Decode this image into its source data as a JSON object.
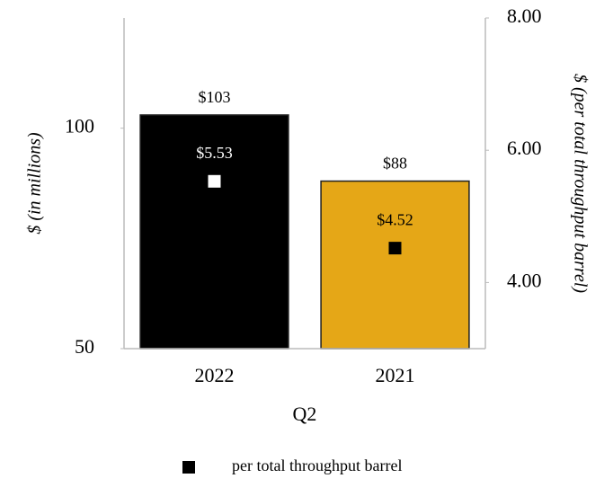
{
  "chart_data": {
    "type": "bar",
    "categories": [
      "2022",
      "2021"
    ],
    "x_label": "Q2",
    "y_label": "$ (in millions)",
    "y2_label": "$ (per total throughput barrel)",
    "ylim": [
      50,
      125
    ],
    "yticks": [
      50,
      100
    ],
    "y2lim": [
      3,
      8
    ],
    "y2ticks": [
      {
        "value": 4,
        "label": "4.00"
      },
      {
        "value": 6,
        "label": "6.00"
      },
      {
        "value": 8,
        "label": "8.00"
      }
    ],
    "series": [
      {
        "type": "bar",
        "values": [
          103,
          88
        ],
        "value_labels": [
          "$103",
          "$88"
        ],
        "colors": [
          "#000000",
          "#e5a717"
        ]
      },
      {
        "type": "scatter",
        "name": "per total throughput barrel",
        "axis": "y2",
        "color": "#000000",
        "values": [
          5.53,
          4.52
        ],
        "value_labels": [
          "$5.53",
          "$4.52"
        ],
        "colors": [
          "#ffffff",
          "#000000"
        ]
      }
    ],
    "legend": "bottom"
  }
}
